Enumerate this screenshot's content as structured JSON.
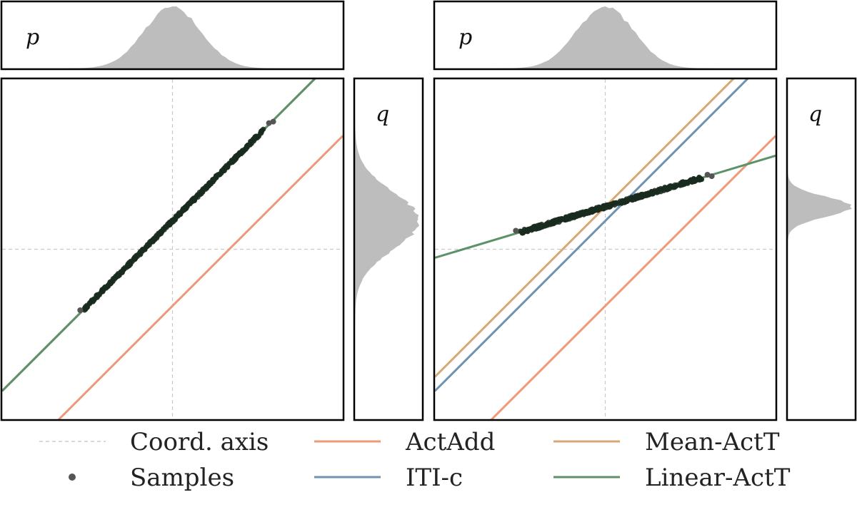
{
  "chart_data": [
    {
      "type": "line",
      "title": "",
      "xlabel": "",
      "ylabel": "",
      "xlim": [
        -6,
        6
      ],
      "ylim": [
        -6,
        6
      ],
      "marginal_x_label": "p",
      "marginal_y_label": "q",
      "marginal_x": {
        "mean": 0.0,
        "std": 1.0
      },
      "marginal_y": {
        "mean": 1.0,
        "std": 1.0
      },
      "samples": {
        "x_range": [
          -3.1,
          3.2
        ],
        "slope": 1.0,
        "intercept": 1.0
      },
      "series": [
        {
          "name": "ActAdd",
          "slope": 1.0,
          "intercept": -2.0
        },
        {
          "name": "ITI-c",
          "slope": 1.0,
          "intercept": 1.0
        },
        {
          "name": "Mean-ActT",
          "slope": 1.0,
          "intercept": 1.0
        },
        {
          "name": "Linear-ActT",
          "slope": 1.0,
          "intercept": 1.0
        }
      ]
    },
    {
      "type": "line",
      "title": "",
      "xlabel": "",
      "ylabel": "",
      "xlim": [
        -6,
        6
      ],
      "ylim": [
        -6,
        6
      ],
      "marginal_x_label": "p",
      "marginal_y_label": "q",
      "marginal_x": {
        "mean": 0.0,
        "std": 1.0
      },
      "marginal_y": {
        "mean": 1.5,
        "std": 0.35
      },
      "samples": {
        "x_range": [
          -3.0,
          3.4
        ],
        "slope": 0.3,
        "intercept": 1.5
      },
      "series": [
        {
          "name": "ActAdd",
          "slope": 1.0,
          "intercept": -2.0
        },
        {
          "name": "ITI-c",
          "slope": 1.0,
          "intercept": 1.0
        },
        {
          "name": "Mean-ActT",
          "slope": 1.0,
          "intercept": 1.5
        },
        {
          "name": "Linear-ActT",
          "slope": 0.3,
          "intercept": 1.5
        }
      ]
    }
  ],
  "legend": {
    "items": [
      {
        "label": "Coord. axis",
        "style": "dashed",
        "color": "#cccccc"
      },
      {
        "label": "Samples",
        "style": "dot",
        "color": "#555555"
      },
      {
        "label": "ActAdd",
        "style": "line",
        "color": "#ee9a7a"
      },
      {
        "label": "ITI-c",
        "style": "line",
        "color": "#6f93b4"
      },
      {
        "label": "Mean-ActT",
        "style": "line",
        "color": "#d7a873"
      },
      {
        "label": "Linear-ActT",
        "style": "line",
        "color": "#5c9268"
      }
    ]
  },
  "colors": {
    "ActAdd": "#ee9a7a",
    "ITI-c": "#6f93b4",
    "Mean-ActT": "#d7a873",
    "Linear-ActT": "#5c9268",
    "samples": "#1a2a1e",
    "hist": "#bdbdbd"
  }
}
